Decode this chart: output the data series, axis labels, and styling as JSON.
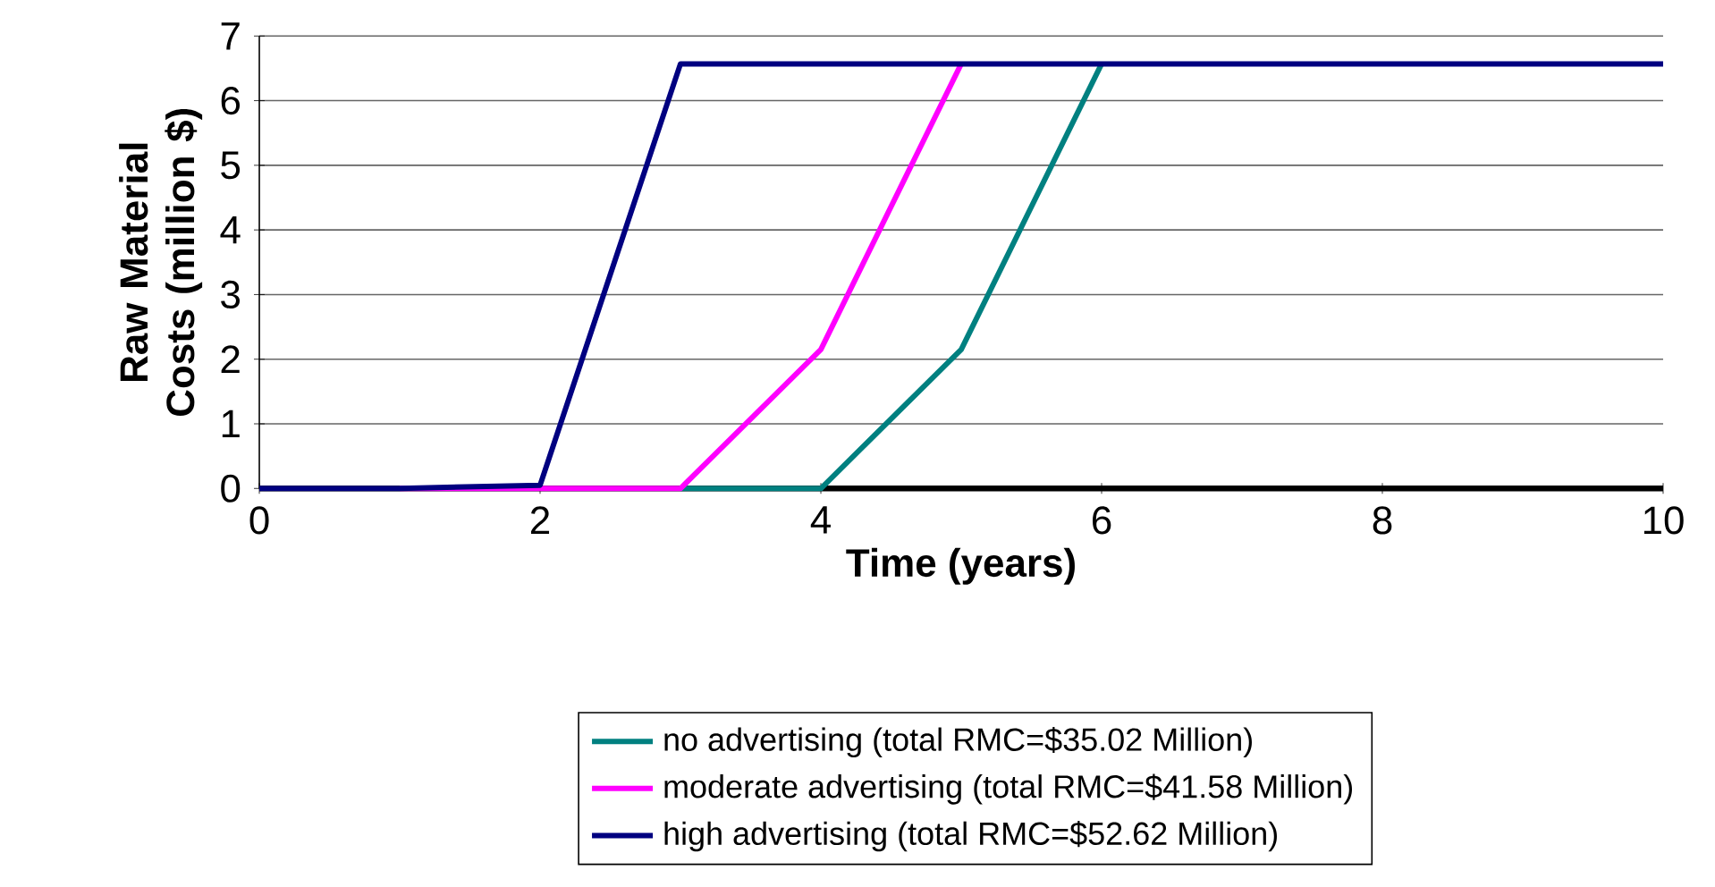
{
  "chart_data": {
    "type": "line",
    "x": [
      0,
      1,
      2,
      3,
      4,
      5,
      6,
      7,
      8,
      9,
      10
    ],
    "series": [
      {
        "name": "no advertising (total RMC=$35.02 Million)",
        "color": "#008080",
        "values": [
          null,
          null,
          null,
          0,
          0,
          2.15,
          6.57,
          null,
          null,
          null,
          null
        ]
      },
      {
        "name": "moderate advertising (total RMC=$41.58 Million)",
        "color": "#ff00ff",
        "values": [
          null,
          0,
          0,
          0,
          2.15,
          6.57,
          null,
          null,
          null,
          null,
          null
        ]
      },
      {
        "name": "high advertising (total RMC=$52.62 Million)",
        "color": "#000080",
        "values": [
          0,
          0,
          0.05,
          6.57,
          6.57,
          6.57,
          6.57,
          6.57,
          6.57,
          6.57,
          6.57
        ]
      }
    ],
    "xlabel": "Time (years)",
    "ylabel": "Raw Material Costs (million $)",
    "xlim": [
      0,
      10
    ],
    "ylim": [
      0,
      7
    ],
    "xticks": [
      0,
      2,
      4,
      6,
      8,
      10
    ],
    "yticks": [
      0,
      1,
      2,
      3,
      4,
      5,
      6,
      7
    ],
    "grid": "y",
    "legend": "bottom",
    "marker": "none",
    "line_style": "solid"
  }
}
